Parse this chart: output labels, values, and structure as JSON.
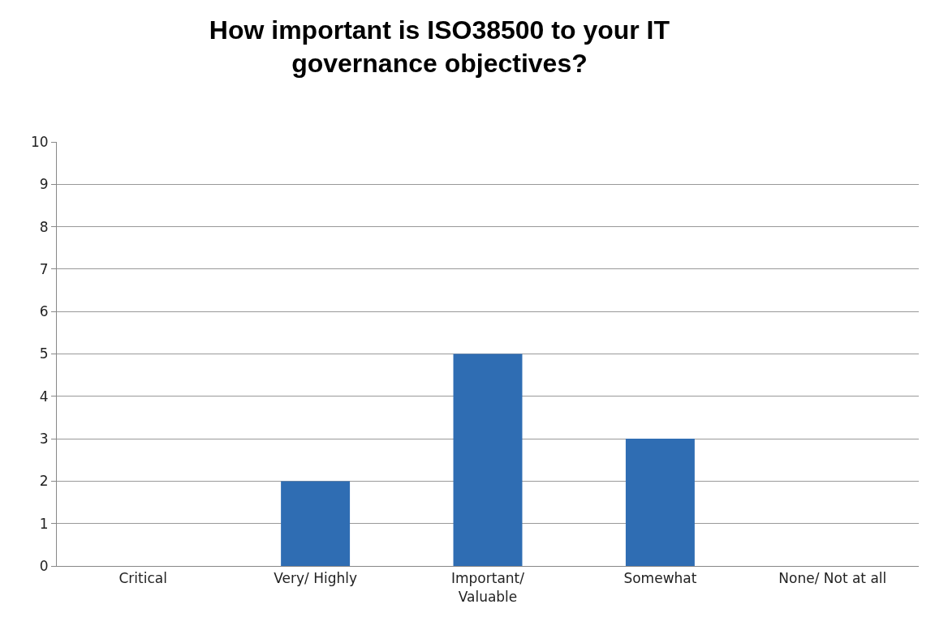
{
  "chart_data": {
    "type": "bar",
    "title": "How important is ISO38500 to your IT\ngovernance objectives?",
    "categories": [
      "Critical",
      "Very/ Highly",
      "Important/\nValuable",
      "Somewhat",
      "None/ Not at all"
    ],
    "values": [
      0,
      2,
      5,
      3,
      0
    ],
    "color": "#2f6db3",
    "ylim": [
      0,
      10
    ],
    "yticks": [
      0,
      1,
      2,
      3,
      4,
      5,
      6,
      7,
      8,
      9,
      10
    ],
    "grid": "y"
  }
}
